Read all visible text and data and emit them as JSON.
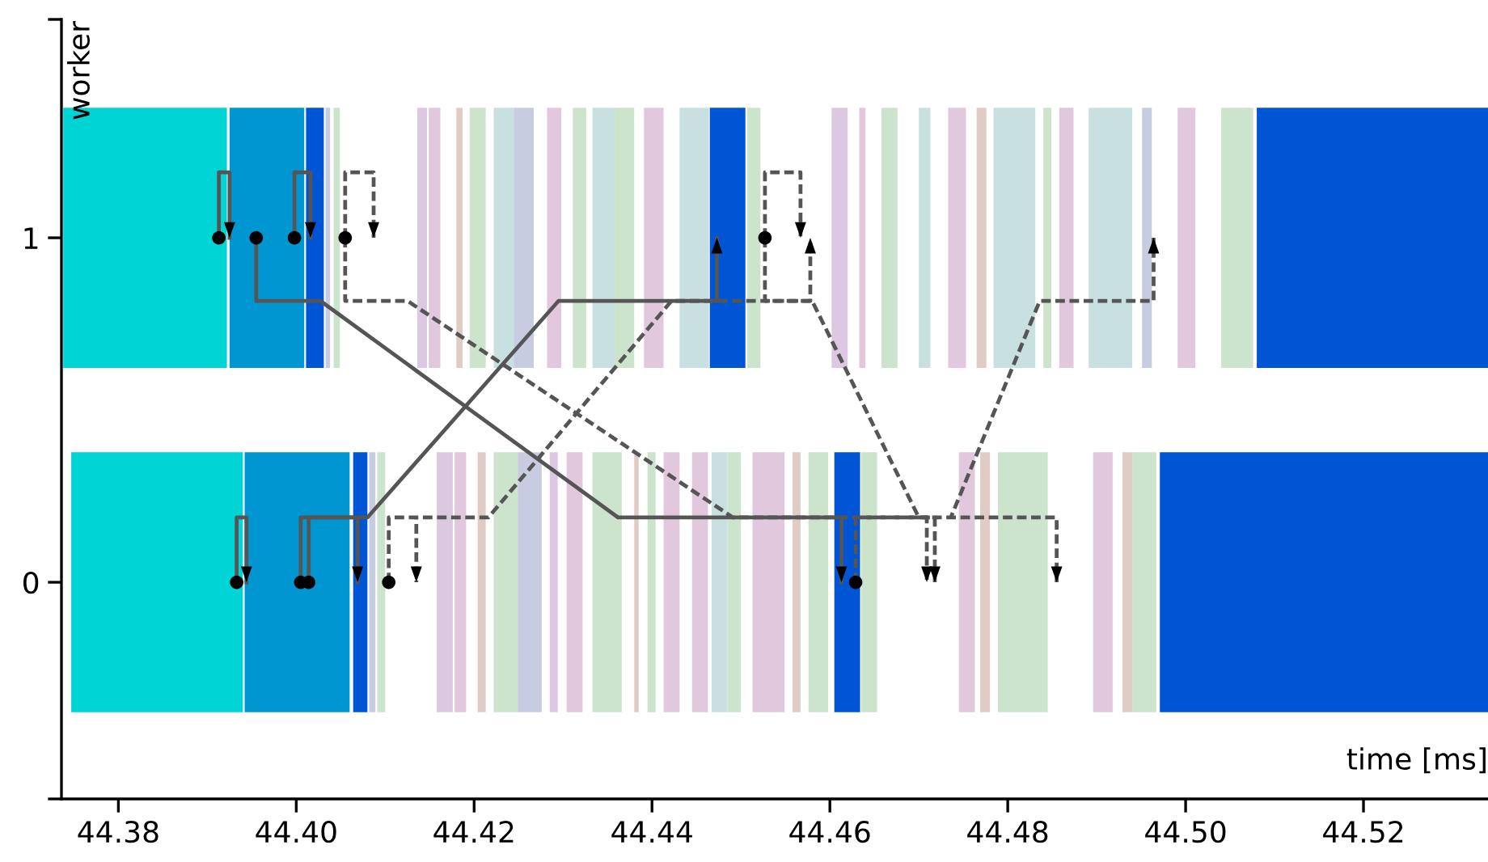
{
  "chart_data": {
    "type": "bar",
    "orientation": "horizontal",
    "xlabel": "time [ms]",
    "ylabel": "worker",
    "xlim": [
      44.3736,
      44.534
    ],
    "ylim": [
      -0.629,
      1.634
    ],
    "xticks": [
      44.38,
      {
        "value": 44.4,
        "label": "44.40"
      },
      44.42,
      44.44,
      44.46,
      44.48,
      {
        "value": 44.5,
        "label": "44.50"
      },
      44.52
    ],
    "yticks": [
      {
        "value": -0.629,
        "label": null
      },
      0,
      1,
      {
        "value": 1.634,
        "label": null
      }
    ],
    "grid": false,
    "legend": false,
    "series": [
      {
        "x": [
          1
        ],
        "base": [
          44.3738
        ],
        "values": [
          0.0184
        ],
        "colors": [
          "#00d4d4"
        ]
      },
      {
        "x": [
          1
        ],
        "base": [
          44.3925
        ],
        "values": [
          0.0084
        ],
        "colors": [
          "#0096d2"
        ]
      },
      {
        "x": [
          1
        ],
        "base": [
          44.4011
        ],
        "values": [
          0.002
        ],
        "colors": [
          "#0055d5"
        ]
      },
      {
        "x": [
          1
        ],
        "base": [
          44.4033
        ],
        "values": [
          0.0005
        ],
        "colors": [
          "#c8cce0"
        ]
      },
      {
        "x": [
          1
        ],
        "base": [
          44.4042
        ],
        "values": [
          0.0007
        ],
        "colors": [
          "#cce4cc"
        ]
      },
      {
        "x": [
          1
        ],
        "base": [
          44.4136
        ],
        "values": [
          0.0011
        ],
        "colors": [
          "#dcc8e0"
        ]
      },
      {
        "x": [
          1
        ],
        "base": [
          44.4149
        ],
        "values": [
          0.0013
        ],
        "colors": [
          "#e2c8dc"
        ]
      },
      {
        "x": [
          1
        ],
        "base": [
          44.418
        ],
        "values": [
          0.0007
        ],
        "colors": [
          "#e0ccc4"
        ]
      },
      {
        "x": [
          1
        ],
        "base": [
          44.4195
        ],
        "values": [
          0.0018
        ],
        "colors": [
          "#cce4cc"
        ]
      },
      {
        "x": [
          1
        ],
        "base": [
          44.4222
        ],
        "values": [
          0.0024
        ],
        "colors": [
          "#c8e0e0"
        ]
      },
      {
        "x": [
          1
        ],
        "base": [
          44.4245
        ],
        "values": [
          0.0022
        ],
        "colors": [
          "#c8cce0"
        ]
      },
      {
        "x": [
          1
        ],
        "base": [
          44.4282
        ],
        "values": [
          0.0016
        ],
        "colors": [
          "#e2c8dc"
        ]
      },
      {
        "x": [
          1
        ],
        "base": [
          44.4311
        ],
        "values": [
          0.0015
        ],
        "colors": [
          "#cce4cc"
        ]
      },
      {
        "x": [
          1
        ],
        "base": [
          44.4333
        ],
        "values": [
          0.0025
        ],
        "colors": [
          "#c8e0e0"
        ]
      },
      {
        "x": [
          1
        ],
        "base": [
          44.4358
        ],
        "values": [
          0.0022
        ],
        "colors": [
          "#cce4cc"
        ]
      },
      {
        "x": [
          1
        ],
        "base": [
          44.4391
        ],
        "values": [
          0.0022
        ],
        "colors": [
          "#e2c8dc"
        ]
      },
      {
        "x": [
          1
        ],
        "base": [
          44.4431
        ],
        "values": [
          0.0033
        ],
        "colors": [
          "#c8e0e0"
        ]
      },
      {
        "x": [
          1
        ],
        "base": [
          44.4465
        ],
        "values": [
          0.004
        ],
        "colors": [
          "#0055d5"
        ]
      },
      {
        "x": [
          1
        ],
        "base": [
          44.4507
        ],
        "values": [
          0.0015
        ],
        "colors": [
          "#cce4cc"
        ]
      },
      {
        "x": [
          1
        ],
        "base": [
          44.4602
        ],
        "values": [
          0.0018
        ],
        "colors": [
          "#dcc8e0"
        ]
      },
      {
        "x": [
          1
        ],
        "base": [
          44.4633
        ],
        "values": [
          0.0007
        ],
        "colors": [
          "#e2c8dc"
        ]
      },
      {
        "x": [
          1
        ],
        "base": [
          44.4658
        ],
        "values": [
          0.0018
        ],
        "colors": [
          "#cce4cc"
        ]
      },
      {
        "x": [
          1
        ],
        "base": [
          44.47
        ],
        "values": [
          0.0013
        ],
        "colors": [
          "#c8e0e0"
        ]
      },
      {
        "x": [
          1
        ],
        "base": [
          44.4733
        ],
        "values": [
          0.002
        ],
        "colors": [
          "#e2c8dc"
        ]
      },
      {
        "x": [
          1
        ],
        "base": [
          44.4765
        ],
        "values": [
          0.0011
        ],
        "colors": [
          "#e0ccc4"
        ]
      },
      {
        "x": [
          1
        ],
        "base": [
          44.4784
        ],
        "values": [
          0.0047
        ],
        "colors": [
          "#c8e0e0"
        ]
      },
      {
        "x": [
          1
        ],
        "base": [
          44.484
        ],
        "values": [
          0.0009
        ],
        "colors": [
          "#cce4cc"
        ]
      },
      {
        "x": [
          1
        ],
        "base": [
          44.4858
        ],
        "values": [
          0.0016
        ],
        "colors": [
          "#e2c8dc"
        ]
      },
      {
        "x": [
          1
        ],
        "base": [
          44.4891
        ],
        "values": [
          0.0049
        ],
        "colors": [
          "#c8e0e0"
        ]
      },
      {
        "x": [
          1
        ],
        "base": [
          44.4951
        ],
        "values": [
          0.0011
        ],
        "colors": [
          "#c8cce0"
        ]
      },
      {
        "x": [
          1
        ],
        "base": [
          44.4991
        ],
        "values": [
          0.002
        ],
        "colors": [
          "#e2c8dc"
        ]
      },
      {
        "x": [
          1
        ],
        "base": [
          44.504
        ],
        "values": [
          0.0036
        ],
        "colors": [
          "#cce4cc"
        ]
      },
      {
        "x": [
          1
        ],
        "base": [
          44.508
        ],
        "values": [
          0.026
        ],
        "colors": [
          "#0055d5"
        ]
      },
      {
        "x": [
          0
        ],
        "base": [
          44.3747
        ],
        "values": [
          0.0193
        ],
        "colors": [
          "#00d4d4"
        ]
      },
      {
        "x": [
          0
        ],
        "base": [
          44.3942
        ],
        "values": [
          0.0118
        ],
        "colors": [
          "#0096d2"
        ]
      },
      {
        "x": [
          0
        ],
        "base": [
          44.4064
        ],
        "values": [
          0.0016
        ],
        "colors": [
          "#0055d5"
        ]
      },
      {
        "x": [
          0
        ],
        "base": [
          44.4082
        ],
        "values": [
          0.0007
        ],
        "colors": [
          "#c8cce0"
        ]
      },
      {
        "x": [
          0
        ],
        "base": [
          44.4091
        ],
        "values": [
          0.0009
        ],
        "colors": [
          "#cce4cc"
        ]
      },
      {
        "x": [
          0
        ],
        "base": [
          44.4158
        ],
        "values": [
          0.0018
        ],
        "colors": [
          "#dcc8e0"
        ]
      },
      {
        "x": [
          0
        ],
        "base": [
          44.4178
        ],
        "values": [
          0.0013
        ],
        "colors": [
          "#e2c8dc"
        ]
      },
      {
        "x": [
          0
        ],
        "base": [
          44.4204
        ],
        "values": [
          0.0009
        ],
        "colors": [
          "#e0ccc4"
        ]
      },
      {
        "x": [
          0
        ],
        "base": [
          44.4222
        ],
        "values": [
          0.0027
        ],
        "colors": [
          "#cce4cc"
        ]
      },
      {
        "x": [
          0
        ],
        "base": [
          44.4249
        ],
        "values": [
          0.0027
        ],
        "colors": [
          "#c8cce0"
        ]
      },
      {
        "x": [
          0
        ],
        "base": [
          44.4285
        ],
        "values": [
          0.0009
        ],
        "colors": [
          "#dcc8e0"
        ]
      },
      {
        "x": [
          0
        ],
        "base": [
          44.4304
        ],
        "values": [
          0.0018
        ],
        "colors": [
          "#e2c8dc"
        ]
      },
      {
        "x": [
          0
        ],
        "base": [
          44.4333
        ],
        "values": [
          0.0033
        ],
        "colors": [
          "#cce4cc"
        ]
      },
      {
        "x": [
          0
        ],
        "base": [
          44.438
        ],
        "values": [
          0.0005
        ],
        "colors": [
          "#e0ccc4"
        ]
      },
      {
        "x": [
          0
        ],
        "base": [
          44.4395
        ],
        "values": [
          0.0009
        ],
        "colors": [
          "#cce4cc"
        ]
      },
      {
        "x": [
          0
        ],
        "base": [
          44.4413
        ],
        "values": [
          0.0018
        ],
        "colors": [
          "#e2c8dc"
        ]
      },
      {
        "x": [
          0
        ],
        "base": [
          44.4445
        ],
        "values": [
          0.0018
        ],
        "colors": [
          "#e2c8dc"
        ]
      },
      {
        "x": [
          0
        ],
        "base": [
          44.4467
        ],
        "values": [
          0.0018
        ],
        "colors": [
          "#c8e0e0"
        ]
      },
      {
        "x": [
          0
        ],
        "base": [
          44.4485
        ],
        "values": [
          0.0015
        ],
        "colors": [
          "#cce4cc"
        ]
      },
      {
        "x": [
          0
        ],
        "base": [
          44.4513
        ],
        "values": [
          0.0036
        ],
        "colors": [
          "#e2c8dc"
        ]
      },
      {
        "x": [
          0
        ],
        "base": [
          44.4558
        ],
        "values": [
          0.0009
        ],
        "colors": [
          "#e0ccc4"
        ]
      },
      {
        "x": [
          0
        ],
        "base": [
          44.4576
        ],
        "values": [
          0.0022
        ],
        "colors": [
          "#cce4cc"
        ]
      },
      {
        "x": [
          0
        ],
        "base": [
          44.4605
        ],
        "values": [
          0.0029
        ],
        "colors": [
          "#0055d5"
        ]
      },
      {
        "x": [
          0
        ],
        "base": [
          44.4635
        ],
        "values": [
          0.0018
        ],
        "colors": [
          "#cce4cc"
        ]
      },
      {
        "x": [
          0
        ],
        "base": [
          44.4745
        ],
        "values": [
          0.0018
        ],
        "colors": [
          "#e2c8dc"
        ]
      },
      {
        "x": [
          0
        ],
        "base": [
          44.4769
        ],
        "values": [
          0.0011
        ],
        "colors": [
          "#e0ccc4"
        ]
      },
      {
        "x": [
          0
        ],
        "base": [
          44.4789
        ],
        "values": [
          0.0056
        ],
        "colors": [
          "#cce4cc"
        ]
      },
      {
        "x": [
          0
        ],
        "base": [
          44.4896
        ],
        "values": [
          0.0022
        ],
        "colors": [
          "#e2c8dc"
        ]
      },
      {
        "x": [
          0
        ],
        "base": [
          44.4929
        ],
        "values": [
          0.0011
        ],
        "colors": [
          "#e0ccc4"
        ]
      },
      {
        "x": [
          0
        ],
        "base": [
          44.494
        ],
        "values": [
          0.0027
        ],
        "colors": [
          "#cce4cc"
        ]
      },
      {
        "x": [
          0
        ],
        "base": [
          44.4971
        ],
        "values": [
          0.0369
        ],
        "colors": [
          "#0055d5"
        ]
      },
      {
        "type": "line",
        "color": "#555555",
        "line_style": "solid",
        "values": [
          44.3913,
          44.3913,
          44.3925,
          44.3925
        ],
        "x": [
          1,
          1.19,
          1.19,
          1
        ]
      },
      {
        "type": "line",
        "color": "#555555",
        "line_style": "solid",
        "values": [
          44.3955,
          44.3955,
          44.4027,
          44.4362,
          44.4613,
          44.4613
        ],
        "x": [
          1,
          0.817,
          0.817,
          0.188,
          0.188,
          0
        ]
      },
      {
        "type": "line",
        "color": "#555555",
        "line_style": "solid",
        "values": [
          44.3998,
          44.3998,
          44.4016,
          44.4016
        ],
        "x": [
          1,
          1.19,
          1.19,
          1
        ]
      },
      {
        "type": "line",
        "color": "#555555",
        "line_style": "dashed",
        "values": [
          44.4055,
          44.4055,
          44.4087,
          44.4087,
          null,
          44.4055,
          44.4055,
          44.4125,
          44.4491,
          44.4709,
          44.4709
        ],
        "x": [
          1,
          1.19,
          1.19,
          1,
          null,
          1,
          0.817,
          0.817,
          0.188,
          0.188,
          0
        ]
      },
      {
        "type": "line",
        "color": "#555555",
        "line_style": "dashed",
        "values": [
          44.4527,
          44.4527,
          44.4567,
          44.4567,
          null,
          44.4527,
          44.4527,
          44.458,
          44.47,
          44.4718,
          44.4718
        ],
        "x": [
          1,
          1.19,
          1.19,
          1,
          null,
          1,
          0.817,
          0.817,
          0.188,
          0.188,
          0
        ]
      },
      {
        "type": "line",
        "color": "#555555",
        "line_style": "solid",
        "values": [
          44.3933,
          44.3933,
          44.3944,
          44.3944
        ],
        "x": [
          0,
          0.188,
          0.188,
          0
        ]
      },
      {
        "type": "line",
        "color": "#555555",
        "line_style": "solid",
        "values": [
          44.4005,
          44.4005,
          44.4069,
          44.4069
        ],
        "x": [
          0,
          0.188,
          0.188,
          0
        ]
      },
      {
        "type": "line",
        "color": "#555555",
        "line_style": "solid",
        "values": [
          44.4014,
          44.4014,
          44.408,
          44.4295,
          44.4473,
          44.4473
        ],
        "x": [
          0,
          0.188,
          0.188,
          0.817,
          0.817,
          1
        ]
      },
      {
        "type": "line",
        "color": "#555555",
        "line_style": "dashed",
        "values": [
          44.4104,
          44.4104,
          44.4135,
          44.4135,
          null,
          44.4104,
          44.4104,
          44.4216,
          44.4422,
          44.4578,
          44.4578
        ],
        "x": [
          0,
          0.188,
          0.188,
          0,
          null,
          0,
          0.188,
          0.188,
          0.817,
          0.817,
          1
        ]
      },
      {
        "type": "line",
        "color": "#555555",
        "line_style": "dashed",
        "values": [
          44.4629,
          44.4629,
          44.4855,
          44.4855,
          null,
          44.4629,
          44.4629,
          44.4736,
          44.4836,
          44.4964,
          44.4964
        ],
        "x": [
          0,
          0.188,
          0.188,
          0,
          null,
          0,
          0.188,
          0.188,
          0.817,
          0.817,
          1
        ]
      },
      {
        "type": "scatter",
        "color": "#000000",
        "marker": "circle",
        "values": [
          44.3913,
          44.3955,
          44.3998,
          44.4055,
          44.4527,
          44.3933,
          44.4005,
          44.4014,
          44.4104,
          44.4629
        ],
        "x": [
          1,
          1,
          1,
          1,
          1,
          0,
          0,
          0,
          0,
          0
        ]
      }
    ]
  }
}
